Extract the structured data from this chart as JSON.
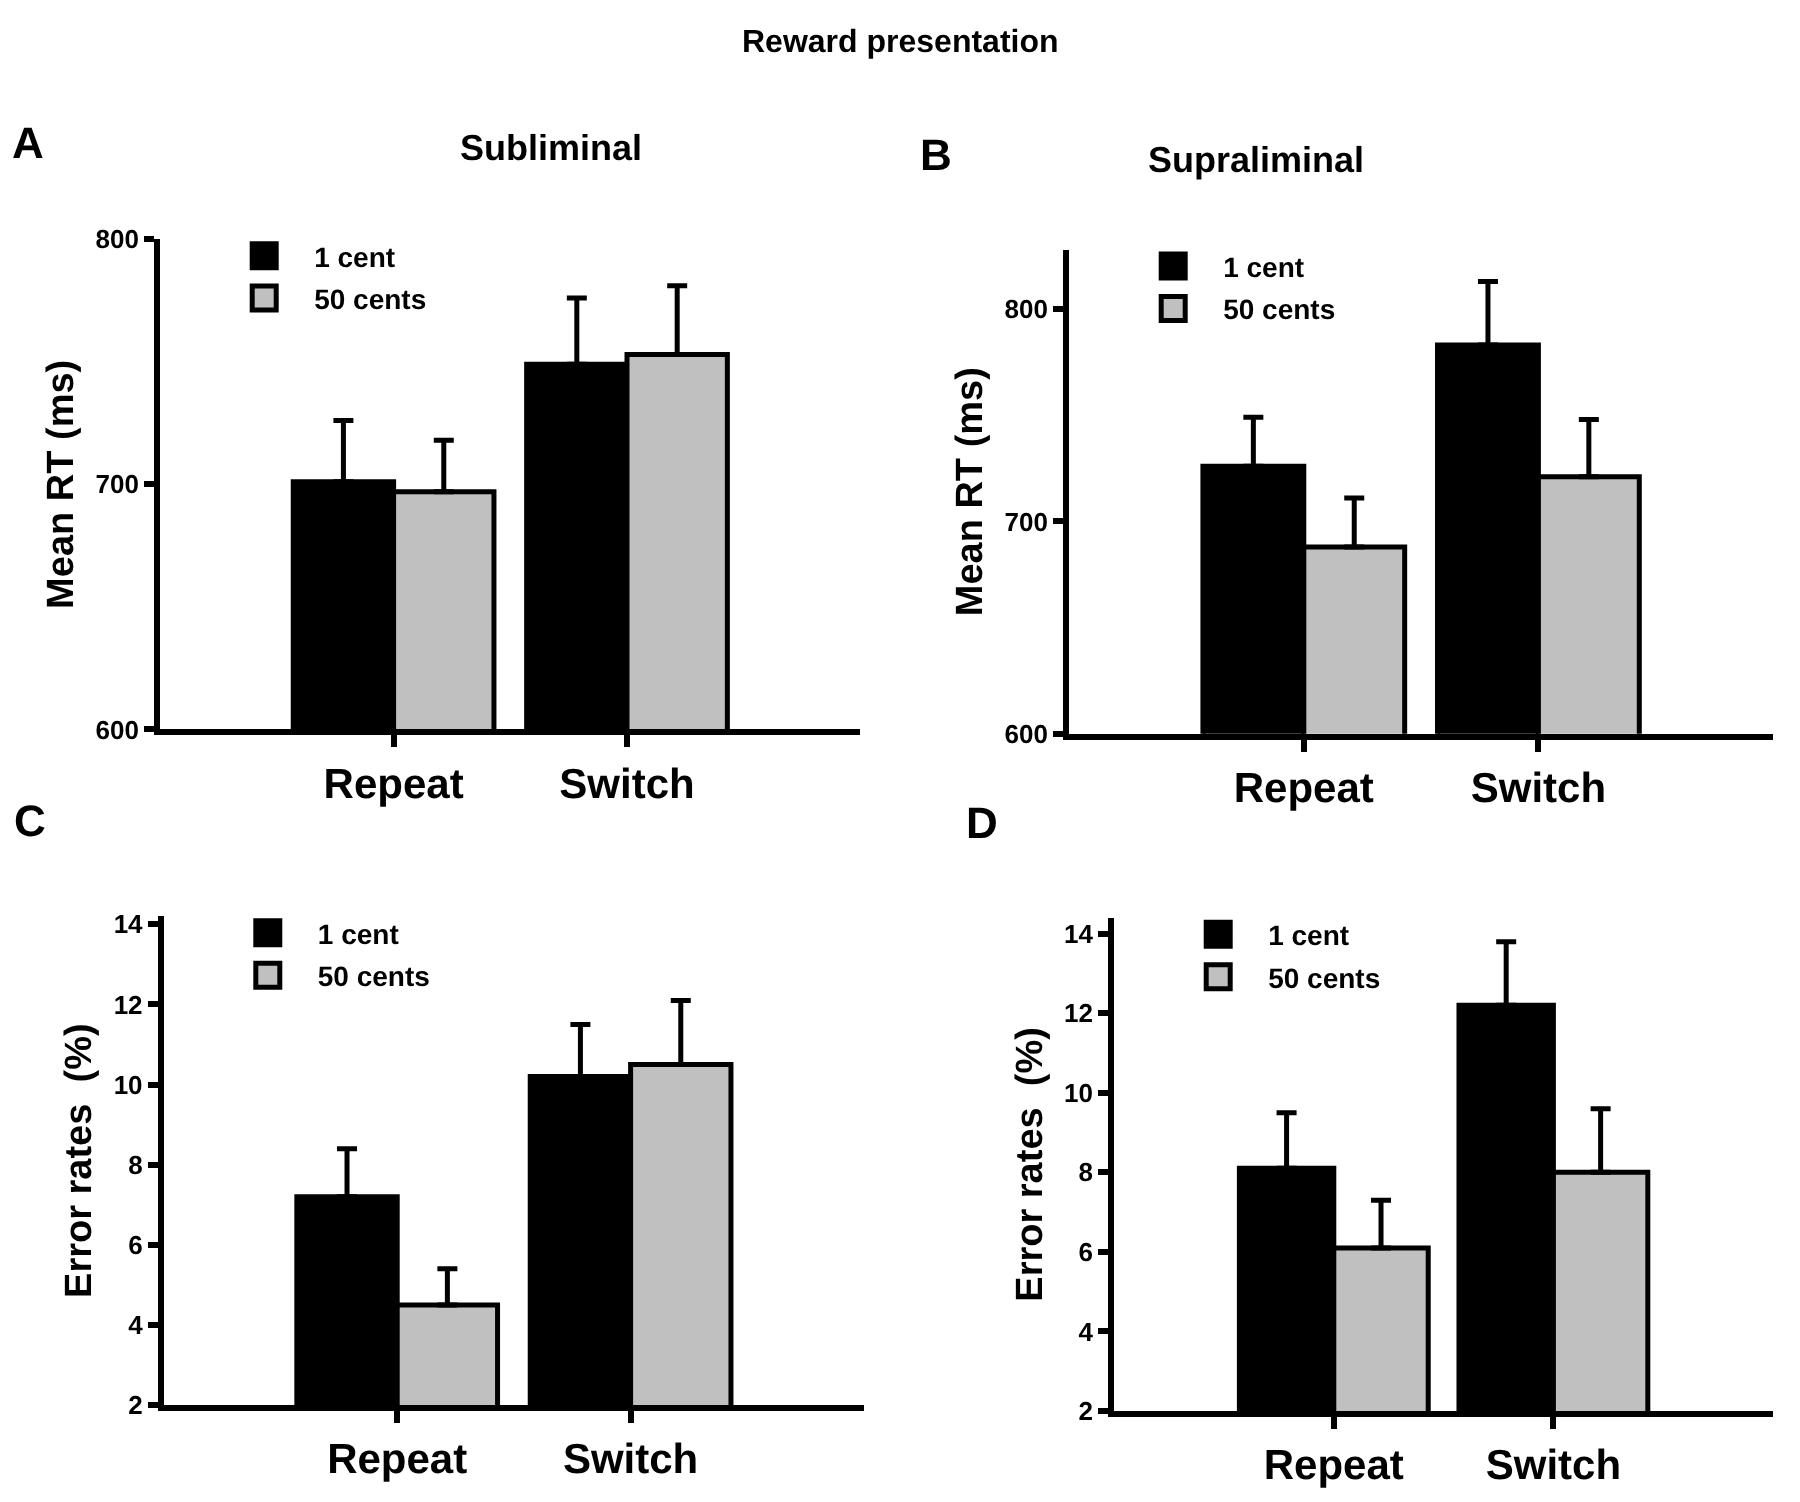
{
  "chart_data": [
    {
      "type": "bar",
      "title": "Subliminal",
      "ylabel": "Mean RT (ms)",
      "annotations": [
        "A",
        "Reward presentation"
      ],
      "categories": [
        "Repeat",
        "Switch"
      ],
      "legend": "top left",
      "ylim": [
        600,
        800
      ],
      "yticks": [
        600,
        700,
        800
      ],
      "series": [
        {
          "name": "1 cent",
          "color": "#000000",
          "values": [
            701,
            749
          ],
          "errors": [
            [
              701,
              726
            ],
            [
              749,
              776
            ]
          ]
        },
        {
          "name": "50 cents",
          "color": "#c0c0c0",
          "values": [
            697,
            753
          ],
          "errors": [
            [
              697,
              718
            ],
            [
              753,
              781
            ]
          ]
        }
      ]
    },
    {
      "type": "bar",
      "title": "Supraliminal",
      "ylabel": "Mean RT (ms)",
      "annotations": [
        "B"
      ],
      "categories": [
        "Repeat",
        "Switch"
      ],
      "legend": "top left",
      "ylim": [
        600,
        828
      ],
      "yticks": [
        600,
        700,
        800
      ],
      "series": [
        {
          "name": "1 cent",
          "color": "#000000",
          "values": [
            726,
            783
          ],
          "errors": [
            [
              726,
              749
            ],
            [
              783,
              813
            ]
          ]
        },
        {
          "name": "50 cents",
          "color": "#c0c0c0",
          "values": [
            688,
            721
          ],
          "errors": [
            [
              688,
              711
            ],
            [
              721,
              748
            ]
          ]
        }
      ]
    },
    {
      "type": "bar",
      "ylabel": "Error rates  (%)",
      "annotations": [
        "C"
      ],
      "categories": [
        "Repeat",
        "Switch"
      ],
      "legend": "top left",
      "ylim": [
        2,
        14.2
      ],
      "yticks": [
        2,
        4,
        6,
        8,
        10,
        12,
        14
      ],
      "series": [
        {
          "name": "1 cent",
          "color": "#000000",
          "values": [
            7.2,
            10.2
          ],
          "errors": [
            [
              7.2,
              8.4
            ],
            [
              10.2,
              11.5
            ]
          ]
        },
        {
          "name": "50 cents",
          "color": "#c0c0c0",
          "values": [
            4.5,
            10.5
          ],
          "errors": [
            [
              4.5,
              5.4
            ],
            [
              10.5,
              12.1
            ]
          ]
        }
      ]
    },
    {
      "type": "bar",
      "ylabel": "Error rates  (%)",
      "annotations": [
        "D"
      ],
      "categories": [
        "Repeat",
        "Switch"
      ],
      "legend": "top left",
      "ylim": [
        2,
        14.4
      ],
      "yticks": [
        2,
        4,
        6,
        8,
        10,
        12,
        14
      ],
      "series": [
        {
          "name": "1 cent",
          "color": "#000000",
          "values": [
            8.1,
            12.2
          ],
          "errors": [
            [
              8.1,
              9.5
            ],
            [
              12.2,
              13.8
            ]
          ]
        },
        {
          "name": "50 cents",
          "color": "#c0c0c0",
          "values": [
            6.1,
            8.0
          ],
          "errors": [
            [
              6.1,
              7.3
            ],
            [
              8.0,
              9.6
            ]
          ]
        }
      ]
    }
  ]
}
